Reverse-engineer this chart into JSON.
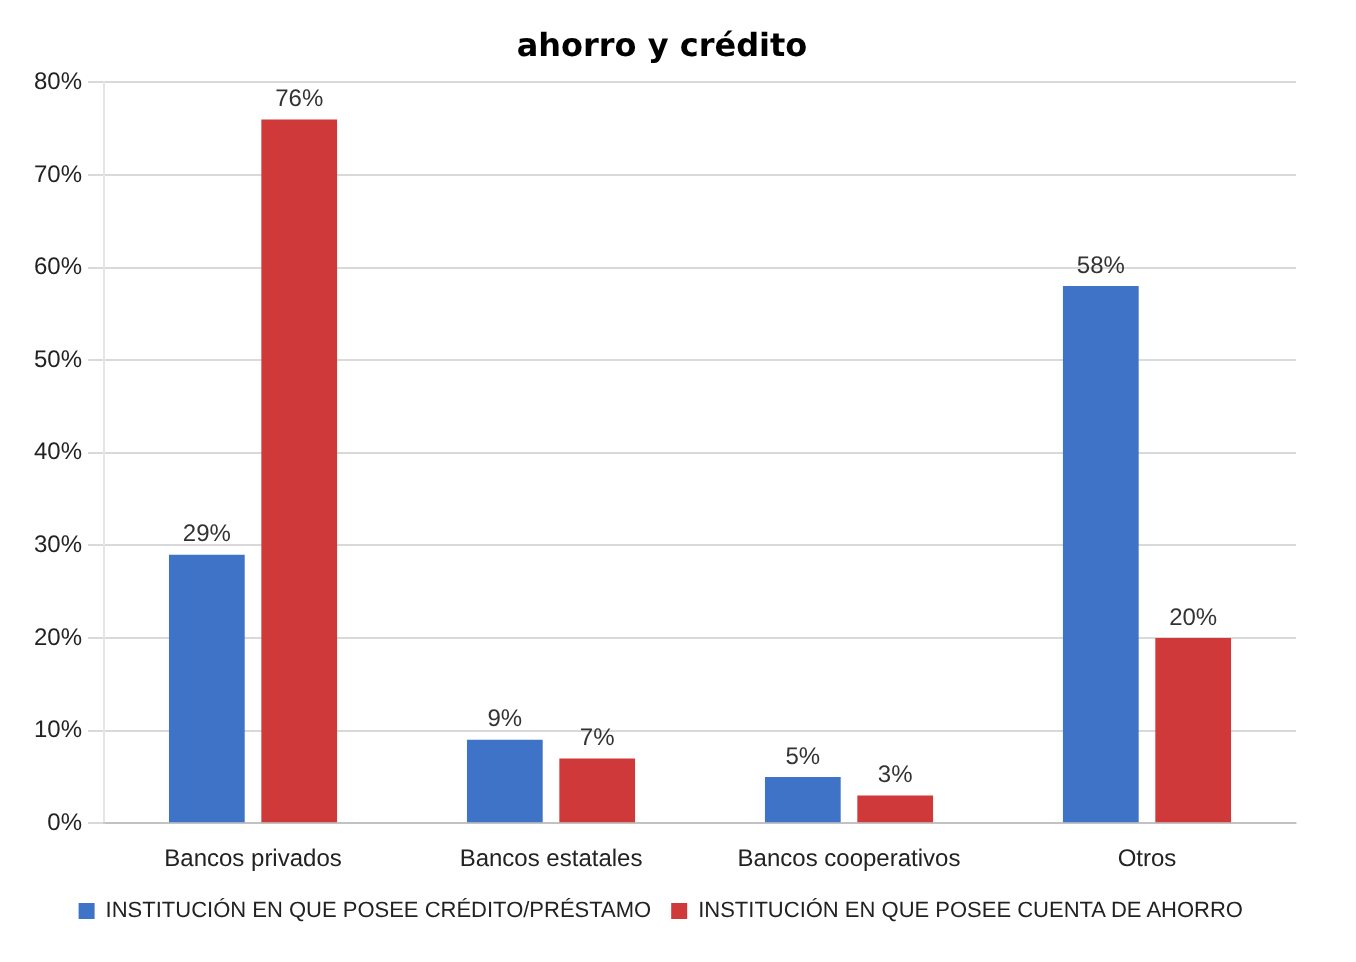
{
  "chart_data": {
    "type": "bar",
    "title": "ahorro y crédito",
    "categories": [
      "Bancos privados",
      "Bancos estatales",
      "Bancos cooperativos",
      "Otros"
    ],
    "series": [
      {
        "name": "INSTITUCIÓN EN QUE POSEE CRÉDITO/PRÉSTAMO",
        "color": "#3f73c8",
        "values": [
          29,
          9,
          5,
          58
        ],
        "value_labels": [
          "29%",
          "9%",
          "5%",
          "58%"
        ]
      },
      {
        "name": "INSTITUCIÓN EN QUE POSEE CUENTA DE AHORRO",
        "color": "#d0393a",
        "values": [
          76,
          7,
          3,
          20
        ],
        "value_labels": [
          "76%",
          "7%",
          "3%",
          "20%"
        ]
      }
    ],
    "ylim": [
      0,
      80
    ],
    "yticks": [
      {
        "value": 0,
        "label": "0%"
      },
      {
        "value": 10,
        "label": "10%"
      },
      {
        "value": 20,
        "label": "20%"
      },
      {
        "value": 30,
        "label": "30%"
      },
      {
        "value": 40,
        "label": "40%"
      },
      {
        "value": 50,
        "label": "50%"
      },
      {
        "value": 60,
        "label": "60%"
      },
      {
        "value": 70,
        "label": "70%"
      },
      {
        "value": 80,
        "label": "80%"
      }
    ],
    "grid": "y",
    "legend": "bottom"
  }
}
